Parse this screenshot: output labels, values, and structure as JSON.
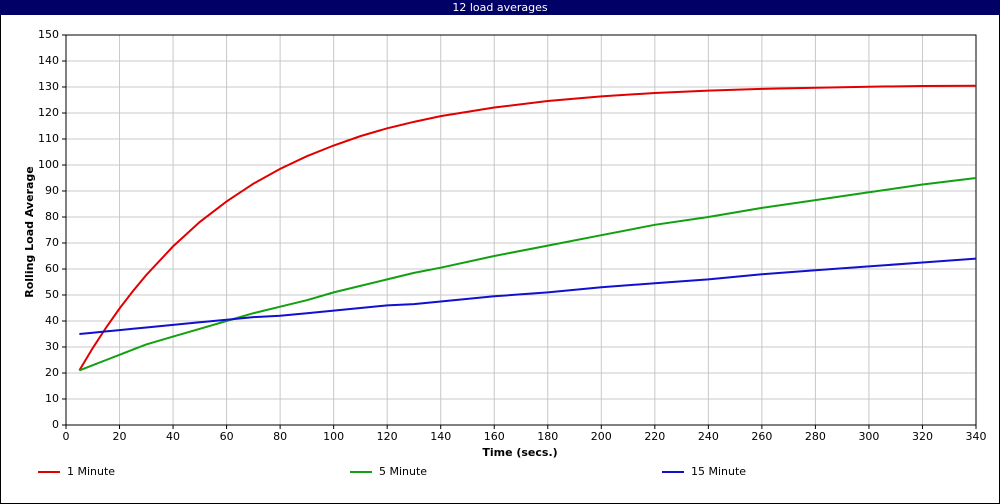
{
  "chart_data": {
    "type": "line",
    "title": "12 load averages",
    "x_label": "Time (secs.)",
    "y_label": "Rolling Load Average",
    "x": [
      5,
      10,
      15,
      20,
      25,
      30,
      40,
      50,
      60,
      70,
      80,
      90,
      100,
      110,
      120,
      130,
      140,
      160,
      180,
      200,
      220,
      240,
      260,
      280,
      300,
      320,
      340
    ],
    "series": [
      {
        "name": "1 Minute",
        "color": "#e00000",
        "values": [
          21,
          29.6,
          37.5,
          44.8,
          51.5,
          57.7,
          68.7,
          78.1,
          86,
          92.8,
          98.5,
          103.4,
          107.5,
          111.1,
          114.1,
          116.6,
          118.8,
          122.1,
          124.6,
          126.4,
          127.7,
          128.6,
          129.3,
          129.7,
          130.1,
          130.4,
          130.5
        ]
      },
      {
        "name": "5 Minute",
        "color": "#10a010",
        "values": [
          21,
          23,
          25,
          27,
          29,
          31,
          34,
          37,
          40,
          43,
          45.5,
          48,
          51,
          53.5,
          56,
          58.5,
          60.5,
          65,
          69,
          73,
          77,
          80,
          83.5,
          86.5,
          89.5,
          92.5,
          95
        ]
      },
      {
        "name": "15 Minute",
        "color": "#1010d0",
        "values": [
          35,
          35.5,
          36,
          36.5,
          37,
          37.5,
          38.5,
          39.5,
          40.5,
          41.5,
          42,
          43,
          44,
          45,
          46,
          46.5,
          47.5,
          49.5,
          51,
          53,
          54.5,
          56,
          58,
          59.5,
          61,
          62.5,
          64
        ]
      }
    ],
    "xlim": [
      0,
      340
    ],
    "xticks": [
      0,
      20,
      40,
      60,
      80,
      100,
      120,
      140,
      160,
      180,
      200,
      220,
      240,
      260,
      280,
      300,
      320,
      340
    ],
    "ylim": [
      0,
      150
    ],
    "yticks": [
      0,
      10,
      20,
      30,
      40,
      50,
      60,
      70,
      80,
      90,
      100,
      110,
      120,
      130,
      140,
      150
    ],
    "grid": true,
    "legend": "bottom"
  }
}
